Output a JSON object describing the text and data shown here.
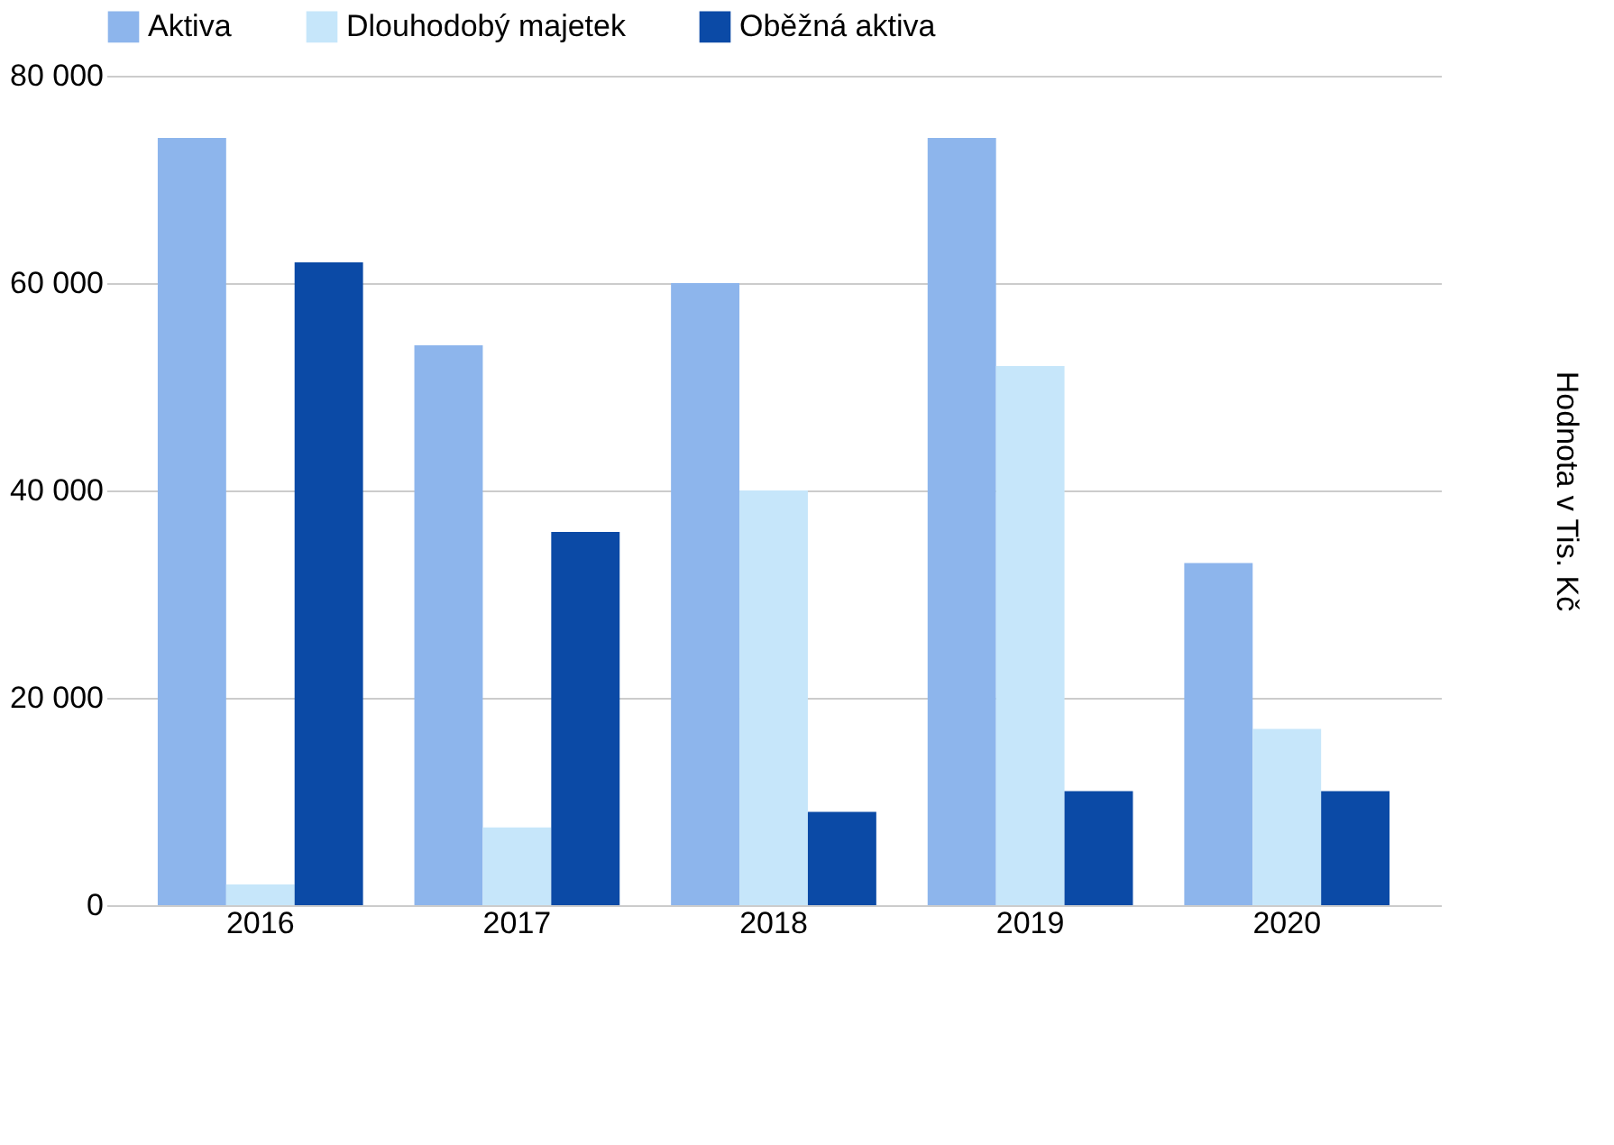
{
  "chart_data": {
    "type": "bar",
    "ylabel": "Hodnota v Tis. Kč",
    "categories": [
      "2016",
      "2017",
      "2018",
      "2019",
      "2020"
    ],
    "series": [
      {
        "name": "Aktiva",
        "color": "#8db5ec",
        "values": [
          74000,
          54000,
          60000,
          74000,
          33000
        ]
      },
      {
        "name": "Dlouhodobý majetek",
        "color": "#c6e6fa",
        "values": [
          2000,
          7500,
          40000,
          52000,
          17000
        ]
      },
      {
        "name": "Oběžná aktiva",
        "color": "#0b4aa6",
        "values": [
          62000,
          36000,
          9000,
          11000,
          11000
        ]
      }
    ],
    "ylim": [
      0,
      80000
    ],
    "yticks": [
      {
        "value": 0,
        "label": "0"
      },
      {
        "value": 20000,
        "label": "20 000"
      },
      {
        "value": 40000,
        "label": "40 000"
      },
      {
        "value": 60000,
        "label": "60 000"
      },
      {
        "value": 80000,
        "label": "80 000"
      }
    ],
    "grid": "y",
    "legend": "top"
  }
}
